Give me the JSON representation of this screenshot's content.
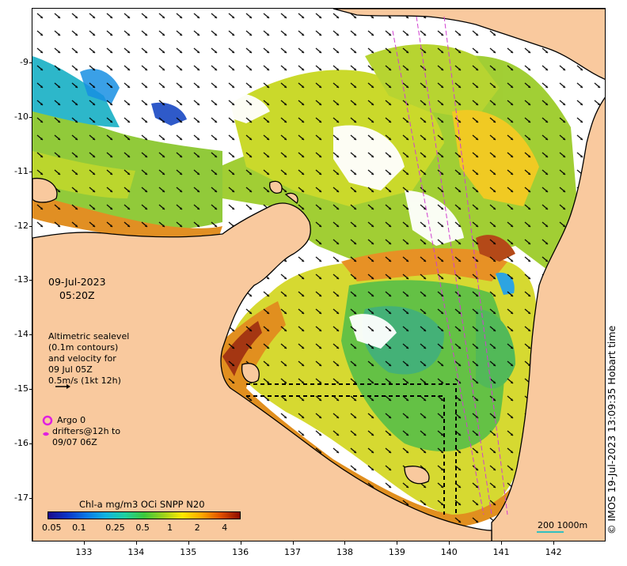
{
  "datetime": {
    "date": "09-Jul-2023",
    "time": "05:20Z"
  },
  "altimetry": {
    "lines": [
      "Altimetric sealevel",
      "(0.1m contours)",
      "and velocity for",
      "09 Jul 05Z",
      "0.5m/s (1kt 12h)"
    ]
  },
  "argo": {
    "label": "Argo 0",
    "marker_color": "#e020e0"
  },
  "drifters": {
    "lines": [
      "drifters@12h to",
      "09/07 06Z"
    ],
    "marker_color": "#e020e0"
  },
  "colorbar": {
    "title": "Chl-a mg/m3 OCi SNPP N20",
    "ticks": [
      "0.05",
      "0.1",
      "0.25",
      "0.5",
      "1",
      "2",
      "4"
    ]
  },
  "axes": {
    "longitude_ticks": [
      "133",
      "134",
      "135",
      "136",
      "137",
      "138",
      "139",
      "140",
      "141",
      "142"
    ],
    "latitude_ticks": [
      "-9",
      "-10",
      "-11",
      "-12",
      "-13",
      "-14",
      "-15",
      "-16",
      "-17"
    ],
    "lon_range": [
      132,
      143
    ],
    "lat_range": [
      -17.8,
      -8
    ]
  },
  "scale": {
    "label": "200  1000m",
    "color": "#33c0c0"
  },
  "credit": "© IMOS 19-Jul-2023 13:09:35 Hobart time",
  "colors": {
    "land": "#f9c99e",
    "ocean_nodata": "#ffffff",
    "coast": "#000000",
    "track": "#d040d0"
  }
}
